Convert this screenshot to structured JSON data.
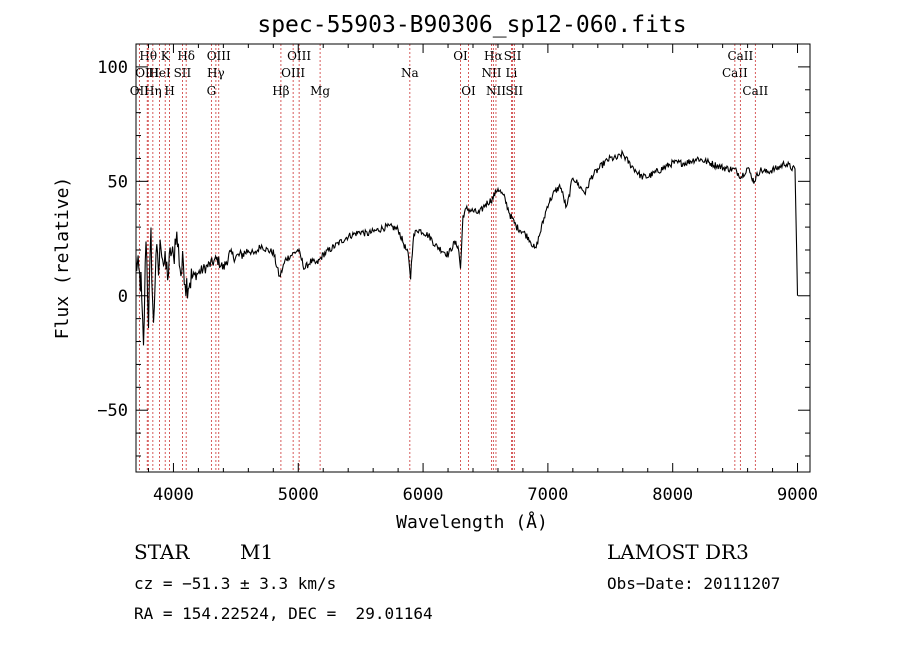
{
  "chart_data": {
    "type": "line",
    "title": "spec-55903-B90306_sp12-060.fits",
    "xlabel": "Wavelength (Å)",
    "ylabel": "Flux (relative)",
    "xlim": [
      3700,
      9100
    ],
    "ylim": [
      -77,
      110
    ],
    "xticks": [
      4000,
      5000,
      6000,
      7000,
      8000,
      9000
    ],
    "yticks": [
      -50,
      0,
      50,
      100
    ],
    "xtick_labels": [
      "4000",
      "5000",
      "6000",
      "7000",
      "8000",
      "9000"
    ],
    "ytick_labels": [
      "−50",
      "0",
      "50",
      "100"
    ],
    "line_color": "#000000",
    "marker_color": "#cc3333",
    "series": [
      {
        "name": "flux",
        "x": [
          3700,
          3740,
          3760,
          3780,
          3800,
          3820,
          3840,
          3860,
          3880,
          3900,
          3920,
          3940,
          3960,
          3980,
          4000,
          4020,
          4040,
          4060,
          4080,
          4100,
          4150,
          4200,
          4250,
          4300,
          4350,
          4400,
          4450,
          4500,
          4550,
          4600,
          4650,
          4700,
          4750,
          4800,
          4850,
          4900,
          4950,
          5000,
          5050,
          5100,
          5150,
          5200,
          5250,
          5300,
          5350,
          5400,
          5450,
          5500,
          5550,
          5600,
          5650,
          5700,
          5750,
          5800,
          5850,
          5880,
          5900,
          5920,
          5950,
          6000,
          6050,
          6100,
          6150,
          6200,
          6250,
          6280,
          6300,
          6320,
          6350,
          6400,
          6450,
          6500,
          6550,
          6580,
          6600,
          6650,
          6700,
          6750,
          6800,
          6850,
          6900,
          6950,
          7000,
          7050,
          7100,
          7150,
          7200,
          7250,
          7300,
          7350,
          7400,
          7450,
          7500,
          7550,
          7600,
          7650,
          7700,
          7750,
          7800,
          7900,
          8000,
          8100,
          8200,
          8300,
          8400,
          8500,
          8550,
          8600,
          8650,
          8700,
          8750,
          8800,
          8850,
          8900,
          8950,
          8980,
          9000
        ],
        "y": [
          15,
          5,
          -25,
          28,
          -10,
          25,
          -15,
          20,
          10,
          25,
          15,
          12,
          10,
          20,
          15,
          28,
          20,
          10,
          15,
          5,
          8,
          10,
          12,
          14,
          16,
          12,
          18,
          17,
          18,
          20,
          18,
          22,
          20,
          19,
          8,
          16,
          18,
          20,
          12,
          15,
          14,
          18,
          20,
          22,
          24,
          26,
          27,
          28,
          27,
          28,
          29,
          30,
          30,
          29,
          22,
          18,
          8,
          25,
          29,
          28,
          26,
          22,
          20,
          18,
          23,
          22,
          12,
          35,
          38,
          37,
          36,
          40,
          42,
          45,
          47,
          43,
          35,
          30,
          28,
          25,
          20,
          30,
          40,
          45,
          48,
          38,
          52,
          48,
          45,
          52,
          55,
          58,
          60,
          60,
          62,
          58,
          55,
          52,
          52,
          55,
          58,
          58,
          60,
          58,
          56,
          55,
          52,
          56,
          50,
          55,
          54,
          55,
          56,
          58,
          56,
          55,
          0
        ]
      }
    ],
    "emission_lines": [
      {
        "label": "OII",
        "x": 3727,
        "row": 2
      },
      {
        "label": "Hθ",
        "x": 3798,
        "row": 0
      },
      {
        "label": "OIII",
        "x": 3790,
        "row": 1
      },
      {
        "label": "HeI",
        "x": 3889,
        "row": 1
      },
      {
        "label": "K",
        "x": 3934,
        "row": 0
      },
      {
        "label": "Hη",
        "x": 3835,
        "row": 2
      },
      {
        "label": "H",
        "x": 3969,
        "row": 2
      },
      {
        "label": "SII",
        "x": 4072,
        "row": 1
      },
      {
        "label": "Hδ",
        "x": 4102,
        "row": 0
      },
      {
        "label": "G",
        "x": 4304,
        "row": 2
      },
      {
        "label": "Hγ",
        "x": 4340,
        "row": 1
      },
      {
        "label": "OIII",
        "x": 4363,
        "row": 0
      },
      {
        "label": "Hβ",
        "x": 4861,
        "row": 2
      },
      {
        "label": "OIII",
        "x": 4959,
        "row": 1
      },
      {
        "label": "OIII",
        "x": 5007,
        "row": 0
      },
      {
        "label": "Mg",
        "x": 5175,
        "row": 2
      },
      {
        "label": "Na",
        "x": 5894,
        "row": 1
      },
      {
        "label": "OI",
        "x": 6300,
        "row": 0
      },
      {
        "label": "OI",
        "x": 6364,
        "row": 2
      },
      {
        "label": "NII",
        "x": 6548,
        "row": 1
      },
      {
        "label": "Hα",
        "x": 6563,
        "row": 0
      },
      {
        "label": "NII",
        "x": 6584,
        "row": 2
      },
      {
        "label": "Li",
        "x": 6708,
        "row": 1
      },
      {
        "label": "SII",
        "x": 6717,
        "row": 0
      },
      {
        "label": "SII",
        "x": 6731,
        "row": 2
      },
      {
        "label": "CaII",
        "x": 8498,
        "row": 1
      },
      {
        "label": "CaII",
        "x": 8542,
        "row": 0
      },
      {
        "label": "CaII",
        "x": 8662,
        "row": 2
      }
    ]
  },
  "info": {
    "class": "STAR",
    "subclass": "M1",
    "survey": "LAMOST DR3",
    "cz": "cz = −51.3 ± 3.3 km/s",
    "obs_date": "Obs−Date: 20111207",
    "radec": "RA = 154.22524, DEC =  29.01164"
  }
}
